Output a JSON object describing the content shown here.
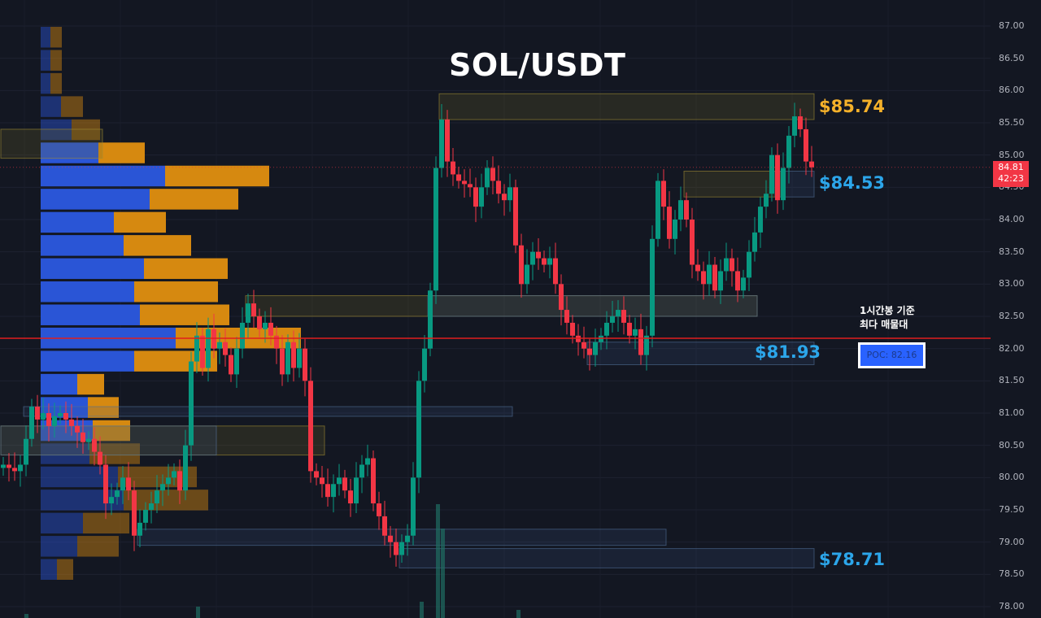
{
  "title": "SOL/USDT",
  "labels": {
    "high_zone": "$85.74",
    "mid_zone": "$84.53",
    "support": "$81.93",
    "low_zone": "$78.71",
    "note_line1": "1시간봉 기준",
    "note_line2": "최다 매물대",
    "poc": "POC: 82.16"
  },
  "last_price": {
    "price": "84.81",
    "countdown": "42:23"
  },
  "colors": {
    "up": "#089981",
    "down": "#f23645",
    "background": "#131722",
    "buy": "#2a55d6",
    "sell": "#d68910",
    "poc_line": "#e01e1e",
    "label_orange": "#f5b12a",
    "label_blue": "#2ca6ea"
  },
  "chart_data": {
    "type": "candlestick",
    "ylim": [
      78.0,
      87.0
    ],
    "y_ticks": [
      "87.00",
      "86.50",
      "86.00",
      "85.50",
      "85.00",
      "84.50",
      "84.00",
      "83.50",
      "83.00",
      "82.50",
      "82.00",
      "81.50",
      "81.00",
      "80.50",
      "80.00",
      "79.50",
      "79.00",
      "78.50",
      "78.00"
    ],
    "grid": true,
    "closes": [
      80.2,
      80.15,
      80.1,
      80.2,
      80.6,
      81.1,
      80.9,
      81.0,
      80.8,
      80.95,
      81.0,
      80.9,
      80.8,
      80.7,
      80.55,
      80.6,
      80.4,
      80.2,
      79.6,
      79.7,
      79.8,
      80.0,
      79.8,
      79.1,
      79.3,
      79.5,
      79.6,
      79.8,
      79.9,
      80.0,
      80.1,
      79.8,
      80.5,
      81.8,
      82.2,
      81.7,
      82.3,
      82.0,
      82.1,
      81.9,
      81.6,
      82.0,
      82.4,
      82.7,
      82.5,
      82.3,
      82.4,
      82.2,
      82.0,
      81.6,
      82.1,
      81.7,
      82.0,
      81.5,
      80.1,
      80.0,
      79.9,
      79.7,
      79.9,
      80.0,
      79.8,
      79.6,
      80.0,
      80.2,
      80.3,
      79.6,
      79.4,
      79.1,
      79.0,
      78.8,
      79.0,
      79.1,
      80.0,
      81.5,
      82.0,
      82.9,
      84.8,
      85.55,
      84.9,
      84.7,
      84.6,
      84.55,
      84.5,
      84.2,
      84.5,
      84.8,
      84.6,
      84.4,
      84.3,
      84.5,
      83.6,
      83.0,
      83.3,
      83.5,
      83.4,
      83.3,
      83.4,
      83.0,
      82.6,
      82.4,
      82.2,
      82.1,
      82.0,
      81.9,
      82.1,
      82.2,
      82.4,
      82.5,
      82.6,
      82.4,
      82.2,
      82.3,
      81.9,
      82.2,
      83.7,
      84.6,
      84.2,
      83.7,
      84.0,
      84.3,
      84.0,
      83.3,
      83.2,
      83.0,
      83.3,
      82.9,
      83.2,
      83.4,
      83.2,
      82.9,
      83.1,
      83.5,
      83.8,
      84.2,
      84.4,
      85.0,
      84.3,
      84.8,
      85.3,
      85.6,
      85.4,
      84.9,
      84.81
    ],
    "current_price": 84.81,
    "poc_price": 82.16,
    "volume_profile": [
      {
        "buy": 12,
        "sell": 14,
        "value_area": false
      },
      {
        "buy": 12,
        "sell": 14,
        "value_area": false
      },
      {
        "buy": 12,
        "sell": 14,
        "value_area": false
      },
      {
        "buy": 25,
        "sell": 27,
        "value_area": false
      },
      {
        "buy": 38,
        "sell": 35,
        "value_area": false
      },
      {
        "buy": 71,
        "sell": 57,
        "value_area": true
      },
      {
        "buy": 153,
        "sell": 128,
        "value_area": true
      },
      {
        "buy": 134,
        "sell": 109,
        "value_area": true
      },
      {
        "buy": 90,
        "sell": 64,
        "value_area": true
      },
      {
        "buy": 102,
        "sell": 83,
        "value_area": true
      },
      {
        "buy": 127,
        "sell": 103,
        "value_area": true
      },
      {
        "buy": 115,
        "sell": 103,
        "value_area": true
      },
      {
        "buy": 122,
        "sell": 110,
        "value_area": true
      },
      {
        "buy": 166,
        "sell": 154,
        "value_area": true
      },
      {
        "buy": 115,
        "sell": 102,
        "value_area": true
      },
      {
        "buy": 45,
        "sell": 33,
        "value_area": true
      },
      {
        "buy": 58,
        "sell": 38,
        "value_area": true
      },
      {
        "buy": 64,
        "sell": 46,
        "value_area": true
      },
      {
        "buy": 60,
        "sell": 62,
        "value_area": false
      },
      {
        "buy": 95,
        "sell": 97,
        "value_area": false
      },
      {
        "buy": 102,
        "sell": 104,
        "value_area": false
      },
      {
        "buy": 52,
        "sell": 57,
        "value_area": false
      },
      {
        "buy": 45,
        "sell": 51,
        "value_area": false
      },
      {
        "buy": 20,
        "sell": 20,
        "value_area": false
      }
    ],
    "zones": [
      {
        "low": 85.55,
        "high": 85.95,
        "from": 77,
        "to": 142,
        "kind": "supply"
      },
      {
        "low": 84.95,
        "high": 85.4,
        "from": 0,
        "to": 17,
        "kind": "supply"
      },
      {
        "low": 84.35,
        "high": 84.75,
        "from": 120,
        "to": 136,
        "kind": "supply"
      },
      {
        "low": 84.35,
        "high": 84.75,
        "from": 136,
        "to": 142,
        "kind": "demand"
      },
      {
        "low": 82.5,
        "high": 82.82,
        "from": 43,
        "to": 132,
        "kind": "supply"
      },
      {
        "low": 82.5,
        "high": 82.82,
        "from": 75,
        "to": 132,
        "kind": "demand"
      },
      {
        "low": 81.75,
        "high": 82.1,
        "from": 103,
        "to": 142,
        "kind": "demand"
      },
      {
        "low": 80.95,
        "high": 81.1,
        "from": 4,
        "to": 89,
        "kind": "demand"
      },
      {
        "low": 80.35,
        "high": 80.8,
        "from": 0,
        "to": 56,
        "kind": "supply"
      },
      {
        "low": 80.35,
        "high": 80.8,
        "from": 0,
        "to": 37,
        "kind": "demand"
      },
      {
        "low": 78.95,
        "high": 79.2,
        "from": 24,
        "to": 116,
        "kind": "demand"
      },
      {
        "low": 78.6,
        "high": 78.9,
        "from": 70,
        "to": 142,
        "kind": "demand"
      }
    ]
  }
}
